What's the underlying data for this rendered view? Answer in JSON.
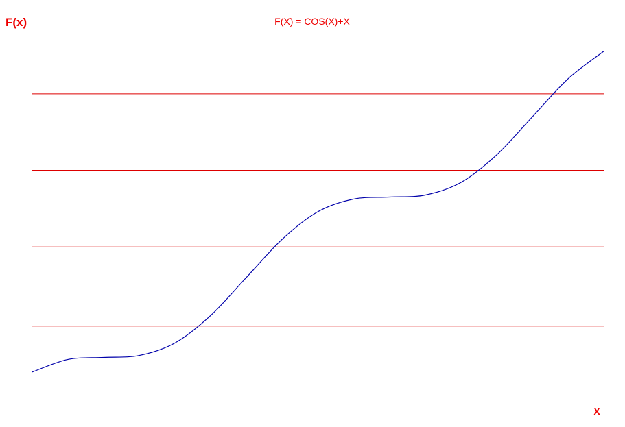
{
  "chart_data": {
    "type": "line",
    "title": "F(X) = COS(X)+X",
    "xlabel": "X",
    "ylabel": "F(x)",
    "xlim": [
      0,
      12.566
    ],
    "ylim": [
      0,
      14.5
    ],
    "grid": true,
    "gridlines_y": [
      2.8,
      5.9,
      8.9,
      11.9
    ],
    "series": [
      {
        "x": [
          0,
          0.785,
          1.571,
          2.356,
          3.142,
          3.927,
          4.712,
          5.498,
          6.283,
          7.069,
          7.854,
          8.639,
          9.425,
          10.21,
          10.996,
          11.781,
          12.566
        ],
        "values": [
          1.0,
          1.492,
          1.571,
          1.649,
          2.142,
          3.22,
          4.712,
          6.205,
          7.283,
          7.776,
          7.854,
          7.932,
          8.425,
          9.503,
          10.996,
          12.488,
          13.566
        ]
      }
    ],
    "colors": {
      "curve": "#0000aa",
      "grid": "#dd0000",
      "text": "#ee0000"
    }
  }
}
